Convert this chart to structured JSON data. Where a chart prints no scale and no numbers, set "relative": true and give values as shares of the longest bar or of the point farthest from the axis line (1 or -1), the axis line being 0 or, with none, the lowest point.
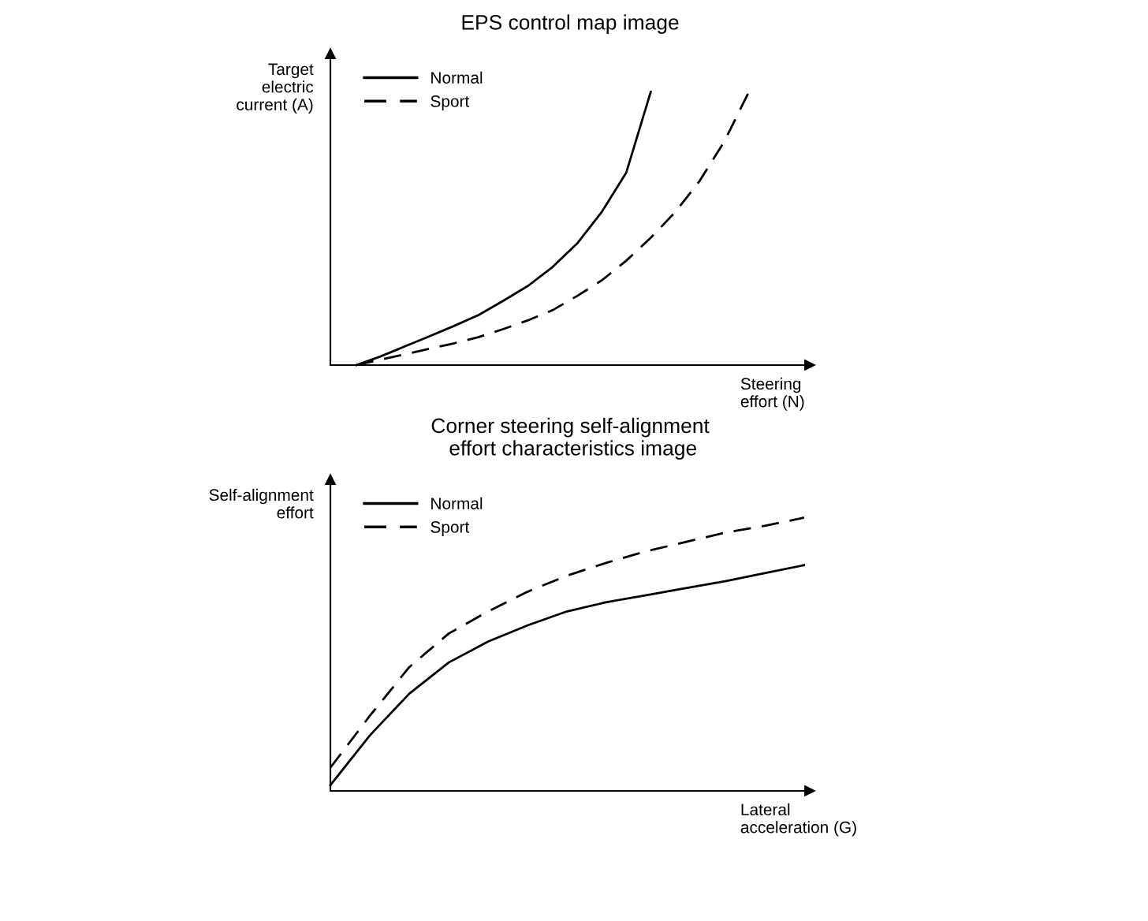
{
  "chart_data": [
    {
      "type": "line",
      "title": "EPS control map image",
      "xlabel": "Steering\neffort (N)",
      "ylabel": "Target\nelectric\ncurrent (A)",
      "relative": true,
      "legend": "top left",
      "marker": "none",
      "tick_labels": false,
      "categories": [
        null,
        null,
        null,
        null,
        null,
        null,
        null,
        null,
        null,
        null,
        null,
        null,
        null,
        null,
        null,
        null,
        null
      ],
      "series": [
        {
          "name": "Normal",
          "color": "#000000",
          "line_style": "solid",
          "values": [
            0,
            0.032,
            0.069,
            0.106,
            0.144,
            0.184,
            0.236,
            0.29,
            0.359,
            0.445,
            0.56,
            0.704,
            1,
            null,
            null,
            null,
            null
          ]
        },
        {
          "name": "Sport",
          "color": "#000000",
          "line_style": "dashed",
          "values": [
            0,
            0.02,
            0.04,
            0.06,
            0.08,
            0.103,
            0.132,
            0.164,
            0.201,
            0.253,
            0.31,
            0.382,
            0.466,
            0.56,
            0.675,
            0.819,
            1
          ]
        }
      ]
    },
    {
      "type": "line",
      "title": "Corner steering self-alignment\n effort characteristics image",
      "xlabel": "Lateral\nacceleration (G)",
      "ylabel": "Self-alignment\neffort",
      "relative": true,
      "legend": "top left",
      "marker": "none",
      "tick_labels": false,
      "categories": [
        null,
        null,
        null,
        null,
        null,
        null,
        null,
        null,
        null,
        null,
        null,
        null,
        null
      ],
      "series": [
        {
          "name": "Normal",
          "color": "#000000",
          "line_style": "solid",
          "values": [
            0.021,
            0.203,
            0.356,
            0.47,
            0.547,
            0.606,
            0.657,
            0.691,
            0.716,
            0.742,
            0.767,
            0.797,
            0.826
          ]
        },
        {
          "name": "Sport",
          "color": "#000000",
          "line_style": "dashed",
          "values": [
            0.085,
            0.275,
            0.453,
            0.576,
            0.657,
            0.729,
            0.788,
            0.835,
            0.877,
            0.911,
            0.945,
            0.97,
            1
          ]
        }
      ]
    }
  ]
}
